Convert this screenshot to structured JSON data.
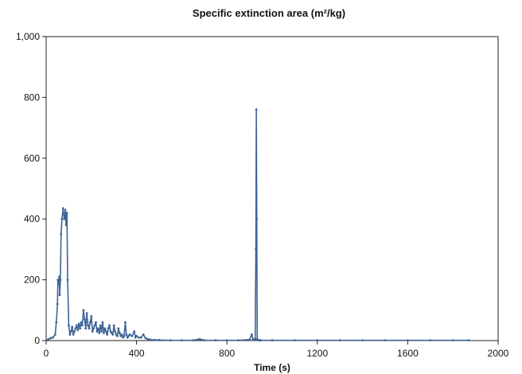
{
  "chart_data": {
    "type": "line",
    "title": "Specific extinction area (m²/kg)",
    "xlabel": "Time (s)",
    "ylabel": "",
    "xlim": [
      0,
      2000
    ],
    "ylim": [
      0,
      1000
    ],
    "xticks": [
      0,
      400,
      800,
      1200,
      1600,
      2000
    ],
    "xtick_labels": [
      "0",
      "400",
      "800",
      "1200",
      "1600",
      "2000"
    ],
    "yticks": [
      0,
      200,
      400,
      600,
      800,
      1000
    ],
    "ytick_labels": [
      "0",
      "200",
      "400",
      "600",
      "800",
      "1,000"
    ],
    "grid": false,
    "series": [
      {
        "color": "#3f6496",
        "x": [
          0,
          10,
          20,
          30,
          40,
          45,
          50,
          52,
          55,
          58,
          60,
          63,
          66,
          70,
          75,
          80,
          85,
          88,
          92,
          95,
          100,
          105,
          110,
          115,
          120,
          125,
          130,
          135,
          140,
          145,
          150,
          155,
          160,
          165,
          170,
          175,
          180,
          185,
          190,
          195,
          200,
          205,
          210,
          215,
          220,
          225,
          230,
          235,
          240,
          245,
          250,
          255,
          260,
          265,
          270,
          275,
          280,
          285,
          290,
          295,
          300,
          305,
          310,
          315,
          320,
          325,
          330,
          335,
          340,
          345,
          350,
          355,
          360,
          365,
          370,
          380,
          390,
          395,
          400,
          410,
          420,
          430,
          440,
          450,
          460,
          480,
          500,
          550,
          600,
          650,
          680,
          700,
          750,
          800,
          850,
          900,
          910,
          915,
          920,
          925,
          928,
          930,
          932,
          934,
          937,
          940,
          945,
          950,
          1000,
          1100,
          1200,
          1300,
          1400,
          1500,
          1600,
          1700,
          1800,
          1870
        ],
        "y": [
          0,
          5,
          8,
          10,
          20,
          60,
          120,
          200,
          185,
          210,
          150,
          200,
          350,
          400,
          435,
          400,
          430,
          380,
          420,
          200,
          50,
          20,
          30,
          45,
          20,
          30,
          40,
          50,
          35,
          55,
          40,
          60,
          50,
          100,
          70,
          40,
          90,
          50,
          40,
          60,
          80,
          30,
          40,
          50,
          60,
          30,
          40,
          25,
          50,
          30,
          60,
          25,
          40,
          30,
          20,
          40,
          50,
          30,
          25,
          20,
          50,
          30,
          20,
          15,
          40,
          25,
          15,
          20,
          10,
          15,
          60,
          20,
          10,
          15,
          20,
          15,
          30,
          10,
          15,
          10,
          10,
          20,
          8,
          5,
          3,
          2,
          2,
          1,
          1,
          1,
          5,
          1,
          1,
          1,
          1,
          3,
          20,
          5,
          2,
          5,
          300,
          760,
          400,
          5,
          2,
          1,
          1,
          1,
          1,
          1,
          1,
          1,
          1,
          1,
          1,
          1,
          1,
          1
        ]
      }
    ]
  }
}
